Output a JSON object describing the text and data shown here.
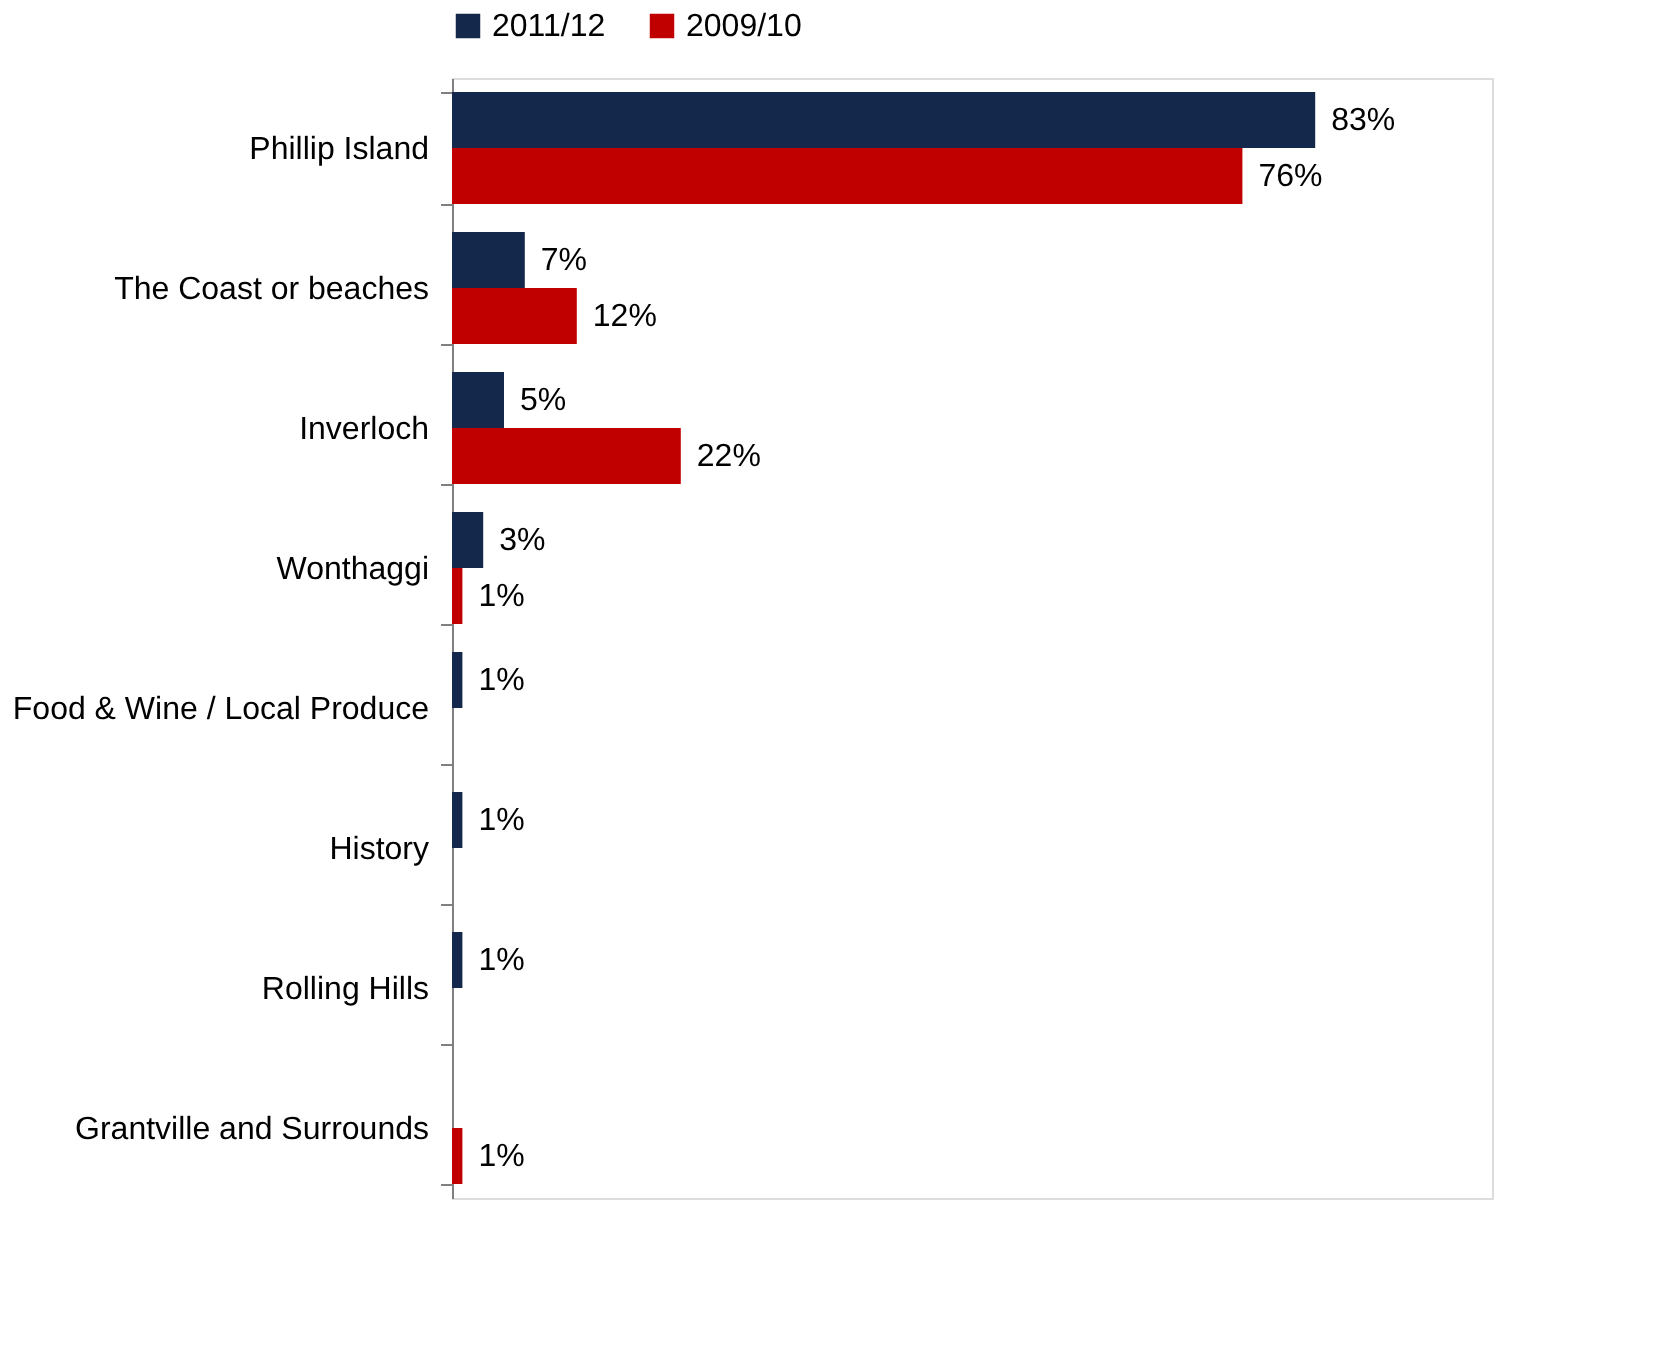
{
  "chart_data": {
    "type": "bar",
    "orientation": "horizontal",
    "categories": [
      "Phillip Island",
      "The Coast or beaches",
      "Inverloch",
      "Wonthaggi",
      "Food & Wine / Local Produce",
      "History",
      "Rolling Hills",
      "Grantville and Surrounds"
    ],
    "series": [
      {
        "name": "2011/12",
        "color": "#14284b",
        "values": [
          83,
          7,
          5,
          3,
          1,
          1,
          1,
          null
        ],
        "value_labels": [
          "83%",
          "7%",
          "5%",
          "3%",
          "1%",
          "1%",
          "1%",
          null
        ]
      },
      {
        "name": "2009/10",
        "color": "#c00000",
        "values": [
          76,
          12,
          22,
          1,
          null,
          null,
          null,
          1
        ],
        "value_labels": [
          "76%",
          "12%",
          "22%",
          "1%",
          null,
          null,
          null,
          "1%"
        ]
      }
    ],
    "xlim": [
      0,
      100
    ],
    "tick_labels": "y",
    "legend": "top"
  }
}
